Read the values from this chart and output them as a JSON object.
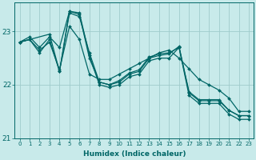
{
  "xlabel": "Humidex (Indice chaleur)",
  "background_color": "#c8eaea",
  "grid_color": "#a0cccc",
  "line_color": "#006666",
  "xlim": [
    -0.5,
    23.5
  ],
  "ylim": [
    21.0,
    23.55
  ],
  "yticks": [
    21,
    22,
    23
  ],
  "xticks": [
    0,
    1,
    2,
    3,
    4,
    5,
    6,
    7,
    8,
    9,
    10,
    11,
    12,
    13,
    14,
    15,
    16,
    17,
    18,
    19,
    20,
    21,
    22,
    23
  ],
  "series": [
    {
      "x": [
        0,
        1,
        2,
        3,
        4,
        5,
        6,
        7,
        8,
        9,
        10,
        11,
        12,
        13,
        14,
        15,
        16,
        17,
        18,
        19,
        20,
        21,
        22,
        23
      ],
      "y": [
        22.8,
        22.9,
        22.7,
        22.9,
        22.7,
        23.38,
        23.35,
        22.55,
        22.0,
        21.95,
        22.0,
        22.15,
        22.2,
        22.45,
        22.5,
        22.5,
        22.7,
        21.8,
        21.65,
        21.65,
        21.65,
        21.45,
        21.35,
        21.35
      ]
    },
    {
      "x": [
        0,
        1,
        2,
        3,
        4,
        5,
        6,
        7,
        8,
        9,
        10,
        11,
        12,
        13,
        14,
        15,
        16,
        17,
        18,
        19,
        20,
        21,
        22,
        23
      ],
      "y": [
        22.8,
        22.85,
        22.6,
        22.85,
        22.25,
        23.38,
        23.32,
        22.5,
        22.05,
        22.0,
        22.05,
        22.2,
        22.25,
        22.5,
        22.55,
        22.58,
        22.72,
        21.85,
        21.7,
        21.7,
        21.7,
        21.52,
        21.42,
        21.42
      ]
    },
    {
      "x": [
        0,
        1,
        2,
        3,
        4,
        5,
        6,
        7,
        8,
        9,
        10,
        11,
        12,
        13,
        14,
        15,
        16,
        17,
        18,
        19,
        20,
        21,
        22,
        23
      ],
      "y": [
        22.8,
        22.85,
        22.65,
        22.8,
        22.28,
        23.1,
        22.85,
        22.2,
        22.1,
        22.1,
        22.2,
        22.3,
        22.4,
        22.5,
        22.6,
        22.65,
        22.5,
        22.3,
        22.1,
        22.0,
        21.9,
        21.75,
        21.5,
        21.5
      ]
    },
    {
      "x": [
        0,
        1,
        3,
        4,
        5,
        6,
        7,
        8,
        9,
        10,
        11,
        12,
        13,
        14,
        15,
        16,
        17,
        18,
        19,
        20,
        21,
        22,
        23
      ],
      "y": [
        22.8,
        22.85,
        22.95,
        22.25,
        23.35,
        23.28,
        22.6,
        22.05,
        22.0,
        22.08,
        22.22,
        22.28,
        22.52,
        22.58,
        22.6,
        22.7,
        21.87,
        21.72,
        21.72,
        21.72,
        21.52,
        21.42,
        21.42
      ]
    }
  ]
}
